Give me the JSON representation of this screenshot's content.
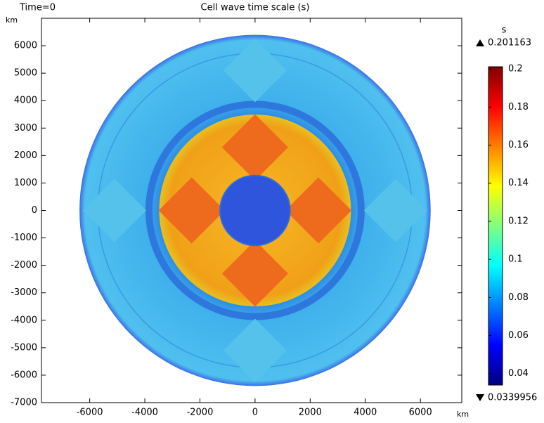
{
  "chart_data": {
    "type": "surface",
    "time": "Time=0",
    "title": "Cell wave time scale (s)",
    "y_unit": "km",
    "x_unit": "km",
    "xlim": [
      -7750,
      7500
    ],
    "ylim": [
      -7000,
      7000
    ],
    "xticks": [
      -6000,
      -4000,
      -2000,
      0,
      2000,
      4000,
      6000
    ],
    "yticks": [
      6000,
      5000,
      4000,
      3000,
      2000,
      1000,
      0,
      -1000,
      -2000,
      -3000,
      -4000,
      -5000,
      -6000,
      -7000
    ],
    "colorbar": {
      "unit": "s",
      "max": 0.201163,
      "min": 0.0339956,
      "ticks": [
        0.2,
        0.18,
        0.16,
        0.14,
        0.12,
        0.1,
        0.08,
        0.06,
        0.04
      ],
      "colormap": "jet"
    }
  }
}
